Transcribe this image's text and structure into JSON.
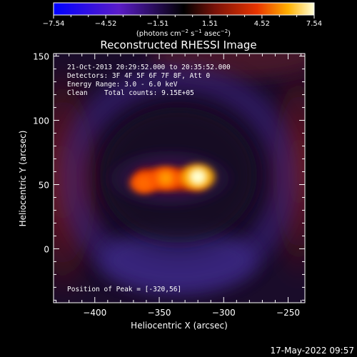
{
  "chart_data": {
    "type": "heatmap",
    "title": "Reconstructed RHESSI Image",
    "xlabel": "Heliocentric X (arcsec)",
    "ylabel": "Heliocentric Y (arcsec)",
    "xlim": [
      -432,
      -237
    ],
    "ylim": [
      -42,
      152
    ],
    "x_ticks": [
      -400,
      -350,
      -300,
      -250
    ],
    "y_ticks": [
      0,
      50,
      100,
      150
    ],
    "x_tick_labels": [
      "−400",
      "−350",
      "−300",
      "−250"
    ],
    "y_tick_labels": [
      "0",
      "50",
      "100",
      "150"
    ],
    "colorbar": {
      "min": -7.54,
      "max": 7.54,
      "ticks": [
        -7.54,
        -4.52,
        -1.51,
        1.51,
        4.52,
        7.54
      ],
      "tick_labels": [
        "−7.54",
        "−4.52",
        "−1.51",
        "1.51",
        "4.52",
        "7.54"
      ],
      "unit_prefix": "(photons cm",
      "unit_exp1": "−2",
      "unit_mid": " s",
      "unit_exp2": "−1",
      "unit_mid2": " asec",
      "unit_exp3": "−2",
      "unit_suffix": ")"
    },
    "annotations": {
      "time_range": "21-Oct-2013 20:29:52.000 to 20:35:52.000",
      "detectors": "Detectors: 3F 4F 5F 6F 7F 8F, Att 0",
      "energy": "Energy Range: 3.0 - 6.0 keV",
      "method": "Clean",
      "counts": "Total counts: 9.15E+05",
      "peak": "Position of Peak = [-320,56]"
    },
    "peak_position": [
      -320,
      56
    ],
    "sources": [
      {
        "x": -320,
        "y": 56,
        "value": 7.54
      },
      {
        "x": -345,
        "y": 55,
        "value": 4.8
      },
      {
        "x": -362,
        "y": 51,
        "value": 3.6
      }
    ]
  },
  "footer": {
    "timestamp": "17-May-2022 09:57"
  }
}
